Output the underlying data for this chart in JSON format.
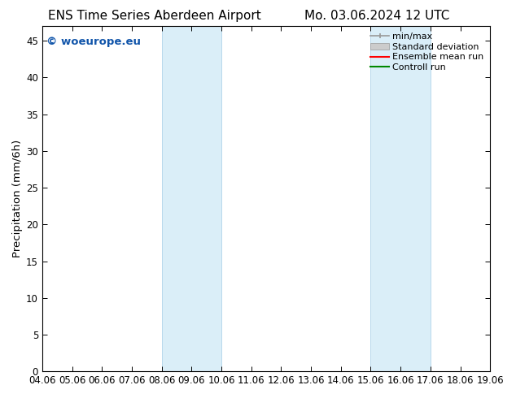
{
  "title_left": "ENS Time Series Aberdeen Airport",
  "title_right": "Mo. 03.06.2024 12 UTC",
  "ylabel": "Precipitation (mm/6h)",
  "xlim_dates": [
    "04.06",
    "05.06",
    "06.06",
    "07.06",
    "08.06",
    "09.06",
    "10.06",
    "11.06",
    "12.06",
    "13.06",
    "14.06",
    "15.06",
    "16.06",
    "17.06",
    "18.06",
    "19.06"
  ],
  "ylim": [
    0,
    47
  ],
  "yticks": [
    0,
    5,
    10,
    15,
    20,
    25,
    30,
    35,
    40,
    45
  ],
  "shaded_regions": [
    {
      "xstart_idx": 4,
      "xend_idx": 6,
      "color": "#daeef8"
    },
    {
      "xstart_idx": 11,
      "xend_idx": 13,
      "color": "#daeef8"
    }
  ],
  "watermark_text": "© woeurope.eu",
  "watermark_color": "#1155aa",
  "background_color": "#ffffff",
  "legend_entries": [
    {
      "label": "min/max",
      "type": "minmax",
      "color": "#999999"
    },
    {
      "label": "Standard deviation",
      "type": "band",
      "color": "#cccccc"
    },
    {
      "label": "Ensemble mean run",
      "type": "line",
      "color": "#ff0000"
    },
    {
      "label": "Controll run",
      "type": "line",
      "color": "#008800"
    }
  ],
  "tick_fontsize": 8.5,
  "label_fontsize": 9.5,
  "title_fontsize": 11,
  "legend_fontsize": 8
}
